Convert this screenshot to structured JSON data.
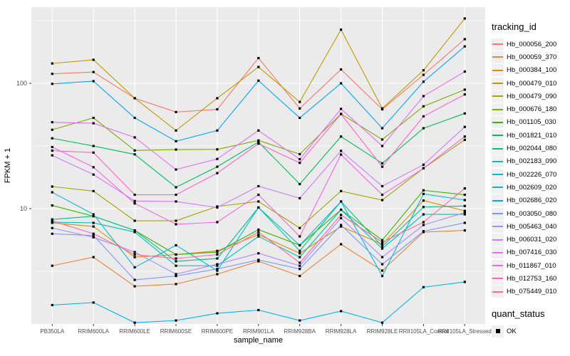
{
  "chart_data": {
    "type": "line",
    "title": "",
    "xlabel": "sample_name",
    "ylabel": "FPKM + 1",
    "y_scale": "log10",
    "y_ticks": [
      10,
      100
    ],
    "y_minor_ticks": [
      3.162,
      31.62,
      316.2
    ],
    "ylim_log": [
      0.074,
      2.608
    ],
    "grid": "on",
    "legend_position": "right",
    "panel_bg": "#EBEBEB",
    "grid_color": "#FFFFFF",
    "tick_label_color": "#4D4D4D",
    "marker": "black-square",
    "categories": [
      "PB350LA",
      "RRIM600LA",
      "RRIM600LE",
      "RRIM600SE",
      "RRIM600PE",
      "RRIM901LA",
      "RRIM928BA",
      "RRIM928LA",
      "RRIM928LE",
      "RRII105LA_Control",
      "RRII105LA_Stressed"
    ],
    "series": [
      {
        "name": "Hb_000056_200",
        "color": "#F8766D",
        "values": [
          119,
          123,
          76,
          59,
          62,
          159,
          63,
          129,
          62,
          117,
          225
        ]
      },
      {
        "name": "Hb_000059_370",
        "color": "#EB8335",
        "values": [
          3.5,
          4.1,
          2.4,
          2.5,
          3.0,
          3.8,
          2.9,
          5.2,
          3.2,
          6.5,
          6.7
        ]
      },
      {
        "name": "Hb_000384_100",
        "color": "#D89000",
        "values": [
          7.7,
          7.2,
          4.1,
          4.3,
          4.6,
          6.2,
          4.4,
          7.2,
          5.2,
          11.6,
          9.6
        ]
      },
      {
        "name": "Hb_000479_010",
        "color": "#C09B00",
        "values": [
          144,
          154,
          76,
          42,
          76,
          135,
          71,
          268,
          63,
          127,
          329
        ]
      },
      {
        "name": "Hb_000479_090",
        "color": "#A3A500",
        "values": [
          15,
          13.8,
          8.0,
          8.0,
          10.4,
          11.4,
          7.0,
          13.8,
          11.7,
          21,
          35.4
        ]
      },
      {
        "name": "Hb_000676_180",
        "color": "#7CAE00",
        "values": [
          42.6,
          53,
          29.1,
          29.6,
          29.7,
          35,
          27.2,
          57,
          35.6,
          65.5,
          89
        ]
      },
      {
        "name": "Hb_001105_030",
        "color": "#39B600",
        "values": [
          10.6,
          8.7,
          6.7,
          4.3,
          4.5,
          6.8,
          5.1,
          9.8,
          5.6,
          14.0,
          12.9
        ]
      },
      {
        "name": "Hb_001821_010",
        "color": "#00BC59",
        "values": [
          36.4,
          31.6,
          27.1,
          14.8,
          21.6,
          34,
          15.7,
          37.6,
          23,
          43.8,
          57.5
        ]
      },
      {
        "name": "Hb_002044_080",
        "color": "#00C08D",
        "values": [
          8.2,
          8.7,
          6.7,
          3.8,
          4.0,
          10.2,
          4.6,
          11.4,
          5.0,
          10.3,
          10.5
        ]
      },
      {
        "name": "Hb_002183_090",
        "color": "#00C0B4",
        "values": [
          7.8,
          7.7,
          6.5,
          3.5,
          3.5,
          6.0,
          4.1,
          9.8,
          4.8,
          9.0,
          9.0
        ]
      },
      {
        "name": "Hb_002226_070",
        "color": "#00BDD2",
        "values": [
          13.5,
          9.0,
          3.4,
          5.1,
          3.2,
          10.2,
          5.1,
          11.4,
          2.9,
          13.1,
          11.7
        ]
      },
      {
        "name": "Hb_002609_020",
        "color": "#00B4E9",
        "values": [
          1.7,
          1.78,
          1.23,
          1.28,
          1.46,
          1.55,
          1.28,
          1.52,
          1.23,
          2.36,
          2.6
        ]
      },
      {
        "name": "Hb_002686_020",
        "color": "#00A5FF",
        "values": [
          99,
          104,
          53,
          34.5,
          42,
          105,
          53,
          100,
          43.8,
          103,
          197
        ]
      },
      {
        "name": "Hb_003050_080",
        "color": "#7997FF",
        "values": [
          6.3,
          6.1,
          2.7,
          2.9,
          3.3,
          3.9,
          3.3,
          7.4,
          3.6,
          6.6,
          7.7
        ]
      },
      {
        "name": "Hb_005463_040",
        "color": "#AC88FF",
        "values": [
          7.0,
          5.9,
          4.5,
          3.0,
          3.6,
          4.4,
          3.5,
          8.4,
          4.1,
          7.4,
          9.3
        ]
      },
      {
        "name": "Hb_006031_020",
        "color": "#CF78FF",
        "values": [
          26.6,
          18.7,
          11.5,
          11.4,
          10.2,
          15.1,
          12.1,
          28.9,
          15.1,
          22.4,
          44.9
        ]
      },
      {
        "name": "Hb_007416_030",
        "color": "#E76BF3",
        "values": [
          48.9,
          48,
          37,
          20.5,
          24.9,
          42,
          24.8,
          62.5,
          31.6,
          79,
          124
        ]
      },
      {
        "name": "Hb_011867_010",
        "color": "#FA62DF",
        "values": [
          31,
          21.4,
          11.0,
          7.5,
          7.8,
          12.9,
          6.0,
          27,
          12.9,
          21,
          37.6
        ]
      },
      {
        "name": "Hb_012753_160",
        "color": "#FF61C7",
        "values": [
          29,
          28,
          12.9,
          12.9,
          19.2,
          33,
          23.2,
          56.9,
          21.6,
          54.5,
          81.5
        ]
      },
      {
        "name": "Hb_075449_010",
        "color": "#FF68A1",
        "values": [
          8.0,
          6.3,
          4.3,
          4.0,
          4.3,
          6.5,
          3.7,
          8.9,
          5.4,
          7.8,
          14.5
        ]
      }
    ]
  },
  "legend": {
    "title": "tracking_id",
    "quant_title": "quant_status",
    "quant_items": [
      {
        "label": "OK",
        "marker": "black-square"
      }
    ]
  },
  "axes": {
    "x_title": "sample_name",
    "y_title": "FPKM + 1",
    "y_tick_labels": [
      "100",
      "10"
    ]
  }
}
